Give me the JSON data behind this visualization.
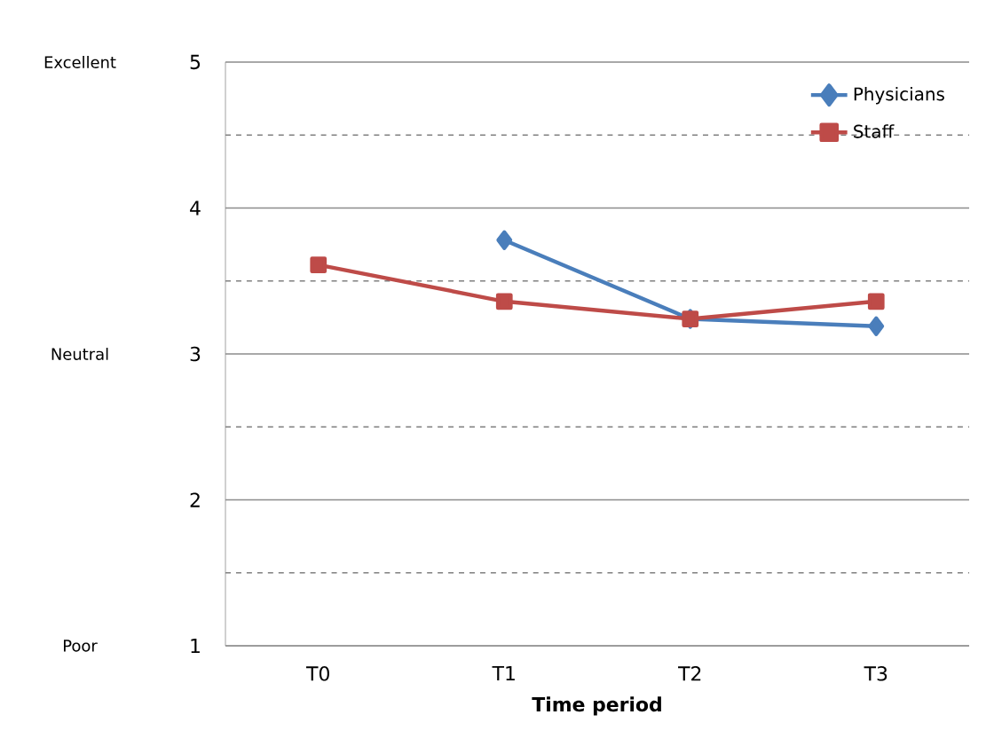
{
  "chart_data": {
    "type": "line",
    "xlabel": "Time period",
    "categories": [
      "T0",
      "T1",
      "T2",
      "T3"
    ],
    "series": [
      {
        "name": "Physicians",
        "color": "#4a7ebb",
        "marker": "diamond",
        "values": [
          null,
          3.78,
          3.24,
          3.19
        ]
      },
      {
        "name": "Staff",
        "color": "#be4b48",
        "marker": "square",
        "values": [
          3.61,
          3.36,
          3.24,
          3.36
        ]
      }
    ],
    "ylim": [
      1,
      5
    ],
    "yticks": [
      1,
      2,
      3,
      4,
      5
    ],
    "grid": "y",
    "legend": "top right",
    "ref_lines": [
      {
        "axis": "y",
        "value": 1.5,
        "color": "#808080",
        "line_style": "dashed"
      },
      {
        "axis": "y",
        "value": 2.5,
        "color": "#808080",
        "line_style": "dashed"
      },
      {
        "axis": "y",
        "value": 3.5,
        "color": "#808080",
        "line_style": "dashed"
      },
      {
        "axis": "y",
        "value": 4.5,
        "color": "#808080",
        "line_style": "dashed"
      }
    ],
    "annotations": [
      "Excellent",
      "Neutral",
      "Poor"
    ]
  }
}
